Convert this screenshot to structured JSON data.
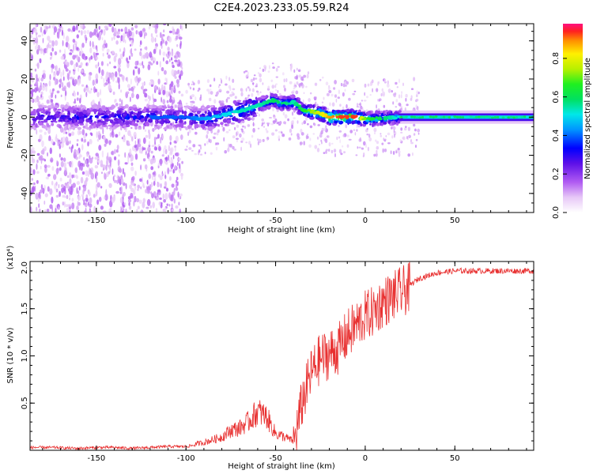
{
  "chart_data": [
    {
      "type": "heatmap",
      "title": "C2E4.2023.233.05.59.R24",
      "xlabel": "Height of straight line (km)",
      "ylabel": "Frequency (Hz)",
      "xlim": [
        -187,
        94
      ],
      "ylim": [
        -50,
        49
      ],
      "xticks": [
        -150,
        -100,
        -50,
        0,
        50
      ],
      "yticks": [
        -40,
        -20,
        0,
        20,
        40
      ],
      "colorbar": {
        "label": "Normalized spectral amplitude",
        "range": [
          0.0,
          0.98
        ],
        "ticks": [
          0.0,
          0.2,
          0.4,
          0.6,
          0.8
        ],
        "tick_labels": [
          "0.0",
          "0.2",
          "0.4",
          "0.6",
          "0.8"
        ]
      },
      "ridge": {
        "x": [
          -187,
          -150,
          -120,
          -100,
          -90,
          -80,
          -70,
          -60,
          -52,
          -46,
          -40,
          -35,
          -30,
          -25,
          -20,
          -15,
          -10,
          -5,
          0,
          10,
          20,
          50,
          94
        ],
        "frequency": [
          0,
          0,
          0,
          0,
          -1,
          1,
          3,
          6,
          9,
          7,
          8,
          4,
          3,
          2,
          0,
          0,
          0,
          0,
          -1,
          -0.5,
          0,
          0,
          0
        ],
        "amplitude": [
          0.35,
          0.4,
          0.4,
          0.4,
          0.45,
          0.5,
          0.55,
          0.55,
          0.6,
          0.6,
          0.55,
          0.65,
          0.75,
          0.8,
          0.9,
          0.95,
          0.95,
          0.95,
          0.7,
          0.6,
          0.5,
          0.5,
          0.45
        ]
      }
    },
    {
      "type": "line",
      "xlabel": "Height of straight line (km)",
      "ylabel": "SNR (10 * v/v)",
      "scale_label": "(x10⁴)",
      "xlim": [
        -187,
        94
      ],
      "ylim": [
        0,
        2.0
      ],
      "xticks": [
        -150,
        -100,
        -50,
        0,
        50
      ],
      "yticks": [
        0.5,
        1.0,
        1.5,
        2.0
      ],
      "ytick_labels": [
        "0.5",
        "1.0",
        "1.5",
        "2.0"
      ],
      "series": [
        {
          "color": "#e83030",
          "x": [
            -187,
            -175,
            -160,
            -150,
            -140,
            -130,
            -120,
            -110,
            -100,
            -90,
            -80,
            -75,
            -70,
            -65,
            -60,
            -55,
            -50,
            -45,
            -40,
            -35,
            -30,
            -25,
            -20,
            -15,
            -10,
            -5,
            0,
            5,
            10,
            15,
            20,
            25,
            30,
            40,
            50,
            60,
            70,
            80,
            94
          ],
          "values": [
            0.03,
            0.03,
            0.02,
            0.03,
            0.03,
            0.02,
            0.03,
            0.04,
            0.04,
            0.07,
            0.12,
            0.18,
            0.2,
            0.26,
            0.35,
            0.3,
            0.15,
            0.12,
            0.08,
            0.55,
            0.85,
            1.0,
            1.05,
            1.1,
            1.25,
            1.35,
            1.45,
            1.5,
            1.6,
            1.65,
            1.7,
            1.75,
            1.82,
            1.88,
            1.9,
            1.9,
            1.9,
            1.9,
            1.9
          ]
        }
      ]
    }
  ]
}
